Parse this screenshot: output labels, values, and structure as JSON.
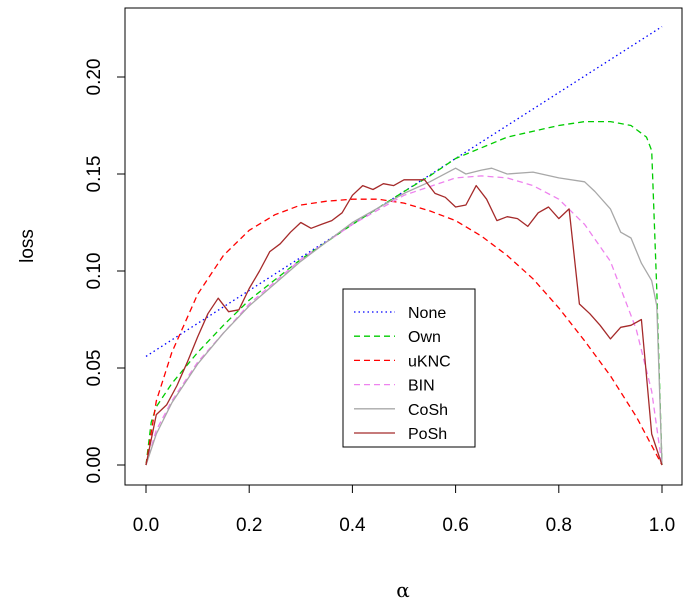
{
  "chart_data": {
    "type": "line",
    "xlabel": "α",
    "ylabel": "loss",
    "xlim": [
      0,
      1
    ],
    "ylim": [
      0,
      0.235
    ],
    "x_ticks": [
      "0.0",
      "0.2",
      "0.4",
      "0.6",
      "0.8",
      "1.0"
    ],
    "y_ticks": [
      "0.00",
      "0.05",
      "0.10",
      "0.15",
      "0.20"
    ],
    "legend_position": "center-bottom",
    "series": [
      {
        "name": "None",
        "color": "#0000ff",
        "dash": "dotted",
        "x": [
          0,
          1
        ],
        "y": [
          0.056,
          0.226
        ]
      },
      {
        "name": "Own",
        "color": "#00cc00",
        "dash": "dashed",
        "x": [
          0,
          0.01,
          0.02,
          0.05,
          0.1,
          0.15,
          0.2,
          0.3,
          0.4,
          0.5,
          0.55,
          0.6,
          0.7,
          0.8,
          0.85,
          0.9,
          0.94,
          0.97,
          0.98,
          0.99,
          1.0
        ],
        "y": [
          0,
          0.022,
          0.03,
          0.042,
          0.058,
          0.072,
          0.085,
          0.106,
          0.124,
          0.141,
          0.149,
          0.158,
          0.169,
          0.175,
          0.177,
          0.177,
          0.175,
          0.169,
          0.162,
          0.09,
          0
        ]
      },
      {
        "name": "uKNC",
        "color": "#ff0000",
        "dash": "dashed",
        "x": [
          0,
          0.02,
          0.05,
          0.1,
          0.15,
          0.2,
          0.25,
          0.3,
          0.35,
          0.4,
          0.45,
          0.5,
          0.55,
          0.6,
          0.65,
          0.7,
          0.75,
          0.8,
          0.85,
          0.9,
          0.95,
          0.98,
          1.0
        ],
        "y": [
          0,
          0.033,
          0.058,
          0.088,
          0.108,
          0.121,
          0.129,
          0.134,
          0.136,
          0.137,
          0.137,
          0.135,
          0.131,
          0.126,
          0.118,
          0.108,
          0.096,
          0.081,
          0.064,
          0.046,
          0.025,
          0.01,
          0
        ]
      },
      {
        "name": "BIN",
        "color": "#ee82ee",
        "dash": "dashed",
        "x": [
          0,
          0.02,
          0.05,
          0.1,
          0.2,
          0.3,
          0.4,
          0.5,
          0.6,
          0.65,
          0.7,
          0.75,
          0.8,
          0.85,
          0.9,
          0.95,
          0.98,
          1.0
        ],
        "y": [
          0,
          0.018,
          0.033,
          0.053,
          0.083,
          0.106,
          0.124,
          0.139,
          0.148,
          0.149,
          0.148,
          0.144,
          0.137,
          0.124,
          0.105,
          0.07,
          0.038,
          0
        ]
      },
      {
        "name": "CoSh",
        "color": "#a8a8a8",
        "dash": "solid",
        "x": [
          0,
          0.02,
          0.05,
          0.1,
          0.15,
          0.2,
          0.3,
          0.4,
          0.5,
          0.55,
          0.6,
          0.62,
          0.65,
          0.67,
          0.7,
          0.75,
          0.8,
          0.85,
          0.87,
          0.9,
          0.92,
          0.94,
          0.96,
          0.98,
          0.99,
          1.0
        ],
        "y": [
          0,
          0.016,
          0.032,
          0.052,
          0.068,
          0.082,
          0.105,
          0.125,
          0.14,
          0.146,
          0.153,
          0.15,
          0.152,
          0.153,
          0.15,
          0.151,
          0.148,
          0.146,
          0.141,
          0.132,
          0.12,
          0.117,
          0.104,
          0.095,
          0.082,
          0
        ]
      },
      {
        "name": "PoSh",
        "color": "#a52a2a",
        "dash": "solid",
        "x": [
          0,
          0.02,
          0.04,
          0.06,
          0.08,
          0.1,
          0.12,
          0.14,
          0.16,
          0.18,
          0.2,
          0.22,
          0.24,
          0.26,
          0.28,
          0.3,
          0.32,
          0.34,
          0.36,
          0.38,
          0.4,
          0.42,
          0.44,
          0.46,
          0.48,
          0.5,
          0.52,
          0.54,
          0.56,
          0.58,
          0.6,
          0.62,
          0.64,
          0.66,
          0.68,
          0.7,
          0.72,
          0.74,
          0.76,
          0.78,
          0.8,
          0.82,
          0.84,
          0.86,
          0.88,
          0.9,
          0.92,
          0.94,
          0.96,
          0.98,
          1.0
        ],
        "y": [
          0,
          0.026,
          0.031,
          0.041,
          0.053,
          0.066,
          0.078,
          0.086,
          0.079,
          0.08,
          0.091,
          0.1,
          0.11,
          0.114,
          0.12,
          0.125,
          0.122,
          0.124,
          0.126,
          0.13,
          0.139,
          0.144,
          0.142,
          0.145,
          0.144,
          0.147,
          0.147,
          0.147,
          0.14,
          0.138,
          0.133,
          0.134,
          0.144,
          0.137,
          0.126,
          0.128,
          0.127,
          0.123,
          0.13,
          0.133,
          0.127,
          0.132,
          0.083,
          0.078,
          0.072,
          0.065,
          0.071,
          0.072,
          0.075,
          0.016,
          0
        ]
      }
    ]
  }
}
